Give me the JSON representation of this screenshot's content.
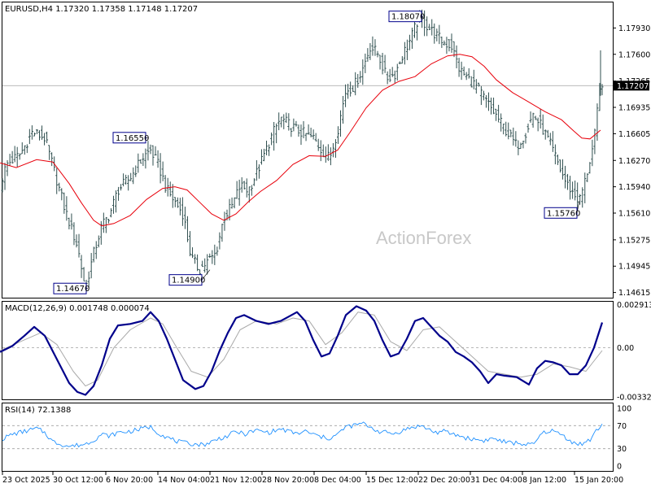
{
  "main_panel": {
    "header": "EURUSD,H4  1.17320 1.17358 1.17148 1.17207",
    "watermark": "ActionForex",
    "y_ticks": [
      "1.17930",
      "1.17600",
      "1.17265",
      "1.16935",
      "1.16605",
      "1.16270",
      "1.15940",
      "1.15610",
      "1.15275",
      "1.14945",
      "1.14615"
    ],
    "current_price": "1.17207",
    "annotations": [
      "1.18070",
      "1.16550",
      "1.14670",
      "1.14900",
      "1.15760"
    ]
  },
  "macd_panel": {
    "header": "MACD(12,26,9) 0.001748 0.000074",
    "y_ticks": [
      "0.002913",
      "0.00",
      "-0.003327"
    ]
  },
  "rsi_panel": {
    "header": "RSI(14) 72.1388",
    "y_ticks": [
      "100",
      "70",
      "30",
      "0"
    ]
  },
  "x_ticks": [
    "23 Oct 2025",
    "30 Oct 12:00",
    "6 Nov 20:00",
    "14 Nov 04:00",
    "21 Nov 12:00",
    "28 Nov 20:00",
    "8 Dec 04:00",
    "15 Dec 12:00",
    "22 Dec 20:00",
    "31 Dec 04:00",
    "8 Jan 12:00",
    "15 Jan 20:00"
  ],
  "colors": {
    "price_bars": "#2f4f4f",
    "moving_average": "#e8000b",
    "macd_line": "#00008b",
    "macd_signal": "#a9a9a9",
    "rsi_line": "#1e90ff",
    "annotation_box": "#00008b"
  },
  "chart_data": [
    {
      "type": "candlestick",
      "title": "EURUSD,H4",
      "symbol": "EURUSD",
      "timeframe": "H4",
      "last_bar": {
        "open": 1.1732,
        "high": 1.17358,
        "low": 1.17148,
        "close": 1.17207
      },
      "ylim": [
        1.1455,
        1.1825
      ],
      "x_tick_labels": [
        "23 Oct 2025",
        "30 Oct 12:00",
        "6 Nov 20:00",
        "14 Nov 04:00",
        "21 Nov 12:00",
        "28 Nov 20:00",
        "8 Dec 04:00",
        "15 Dec 12:00",
        "22 Dec 20:00",
        "31 Dec 04:00",
        "8 Jan 12:00",
        "15 Jan 20:00"
      ],
      "price_path": {
        "x": [
          0,
          8,
          25,
          40,
          55,
          65,
          80,
          95,
          105,
          115,
          125,
          135,
          145,
          160,
          175,
          185,
          195,
          205,
          215,
          225,
          235,
          245,
          255,
          265,
          275,
          285,
          295,
          305,
          315,
          325,
          335,
          345,
          355,
          365,
          375,
          385,
          395,
          405,
          415,
          425,
          435,
          445,
          455,
          465,
          475,
          485,
          495,
          505,
          515,
          525,
          535,
          545,
          555,
          565,
          575,
          585,
          595,
          605,
          615,
          625,
          635,
          645,
          655,
          665,
          675,
          685,
          695,
          705,
          712,
          720,
          730,
          738
        ],
        "y": [
          1.1596,
          1.1622,
          1.1635,
          1.1663,
          1.1655,
          1.162,
          1.1565,
          1.152,
          1.1467,
          1.151,
          1.1545,
          1.156,
          1.159,
          1.1605,
          1.163,
          1.164,
          1.162,
          1.159,
          1.1575,
          1.156,
          1.1505,
          1.149,
          1.15,
          1.151,
          1.1555,
          1.157,
          1.1595,
          1.159,
          1.161,
          1.1635,
          1.166,
          1.168,
          1.1672,
          1.1665,
          1.166,
          1.1655,
          1.164,
          1.163,
          1.1665,
          1.1715,
          1.172,
          1.174,
          1.177,
          1.176,
          1.173,
          1.1735,
          1.176,
          1.178,
          1.1807,
          1.1795,
          1.1785,
          1.1775,
          1.177,
          1.174,
          1.173,
          1.172,
          1.1705,
          1.169,
          1.1675,
          1.166,
          1.1645,
          1.166,
          1.1685,
          1.167,
          1.165,
          1.1625,
          1.16,
          1.1585,
          1.1576,
          1.1605,
          1.165,
          1.1725
        ]
      },
      "moving_average": {
        "x": [
          0,
          20,
          45,
          65,
          85,
          100,
          115,
          125,
          140,
          160,
          180,
          200,
          215,
          230,
          245,
          260,
          275,
          290,
          305,
          320,
          340,
          360,
          380,
          400,
          415,
          430,
          450,
          470,
          490,
          510,
          530,
          550,
          565,
          580,
          595,
          610,
          630,
          650,
          670,
          690,
          705,
          715,
          725,
          738
        ],
        "y": [
          1.1624,
          1.1618,
          1.1628,
          1.1625,
          1.1598,
          1.1574,
          1.1552,
          1.1545,
          1.1548,
          1.1558,
          1.1578,
          1.1592,
          1.1594,
          1.159,
          1.1575,
          1.156,
          1.1552,
          1.156,
          1.1575,
          1.1588,
          1.1602,
          1.1622,
          1.1633,
          1.1632,
          1.164,
          1.1662,
          1.1693,
          1.1715,
          1.1726,
          1.1732,
          1.1748,
          1.1758,
          1.176,
          1.1757,
          1.1745,
          1.1728,
          1.1712,
          1.17,
          1.1688,
          1.1678,
          1.1664,
          1.1655,
          1.1654,
          1.1665
        ]
      },
      "annotations": [
        {
          "label": "1.18070",
          "x": 520,
          "price": 1.1807
        },
        {
          "label": "1.16550",
          "x": 182,
          "price": 1.1655
        },
        {
          "label": "1.14670",
          "x": 108,
          "price": 1.1467
        },
        {
          "label": "1.14900",
          "x": 258,
          "price": 1.149
        },
        {
          "label": "1.15760",
          "x": 712,
          "price": 1.1576
        }
      ],
      "current_price": 1.17207
    },
    {
      "type": "line",
      "title": "MACD(12,26,9)",
      "series": [
        {
          "name": "MACD",
          "x": [
            0,
            15,
            30,
            42,
            55,
            70,
            85,
            95,
            105,
            115,
            125,
            135,
            145,
            160,
            175,
            185,
            195,
            205,
            215,
            225,
            240,
            250,
            260,
            270,
            280,
            290,
            300,
            315,
            330,
            345,
            355,
            365,
            375,
            385,
            395,
            405,
            415,
            425,
            438,
            450,
            460,
            470,
            480,
            490,
            500,
            510,
            520,
            530,
            540,
            550,
            560,
            570,
            580,
            590,
            600,
            610,
            620,
            635,
            650,
            660,
            670,
            680,
            690,
            700,
            710,
            720,
            730,
            740
          ],
          "y": [
            -0.0003,
            0.0001,
            0.0008,
            0.0014,
            0.0008,
            -0.0008,
            -0.0024,
            -0.003,
            -0.0032,
            -0.0026,
            -0.0012,
            0.0006,
            0.0015,
            0.0016,
            0.0018,
            0.0024,
            0.0018,
            0.0006,
            -0.0008,
            -0.0022,
            -0.0028,
            -0.0026,
            -0.0016,
            -0.0002,
            0.001,
            0.002,
            0.0022,
            0.0018,
            0.0016,
            0.0018,
            0.0021,
            0.0024,
            0.0018,
            0.0005,
            -0.0006,
            -0.0004,
            0.0008,
            0.0022,
            0.0028,
            0.0025,
            0.0018,
            0.0005,
            -0.0006,
            -0.0004,
            0.0006,
            0.0018,
            0.002,
            0.0014,
            0.0008,
            0.0004,
            -0.0003,
            -0.0006,
            -0.001,
            -0.0016,
            -0.0024,
            -0.0018,
            -0.0019,
            -0.002,
            -0.0025,
            -0.0014,
            -0.0009,
            -0.001,
            -0.0012,
            -0.0018,
            -0.0018,
            -0.0012,
            0.0,
            0.0017
          ]
        },
        {
          "name": "Signal",
          "x": [
            0,
            25,
            50,
            70,
            90,
            105,
            120,
            140,
            160,
            185,
            200,
            215,
            235,
            255,
            275,
            295,
            315,
            340,
            360,
            380,
            400,
            420,
            440,
            460,
            480,
            500,
            520,
            540,
            560,
            580,
            600,
            620,
            640,
            660,
            680,
            700,
            720,
            740
          ],
          "y": [
            -0.0002,
            0.0004,
            0.001,
            0.0002,
            -0.0016,
            -0.0026,
            -0.0022,
            0.0,
            0.0012,
            0.002,
            0.0016,
            0.0002,
            -0.0016,
            -0.002,
            -0.0008,
            0.0012,
            0.0018,
            0.0016,
            0.002,
            0.0018,
            0.0002,
            0.001,
            0.0024,
            0.0022,
            0.0004,
            -0.0002,
            0.0012,
            0.0014,
            0.0004,
            -0.0006,
            -0.0016,
            -0.0018,
            -0.002,
            -0.0018,
            -0.0011,
            -0.0013,
            -0.0016,
            -0.0002
          ]
        }
      ],
      "ylim": [
        -0.0035,
        0.0031
      ],
      "y_tick_labels": [
        "0.002913",
        "0.00",
        "-0.003327"
      ]
    },
    {
      "type": "line",
      "title": "RSI(14)",
      "series": [
        {
          "name": "RSI",
          "x": [
            0,
            15,
            30,
            45,
            55,
            65,
            75,
            85,
            95,
            105,
            115,
            125,
            135,
            145,
            160,
            175,
            185,
            195,
            205,
            215,
            225,
            240,
            250,
            260,
            270,
            280,
            290,
            300,
            315,
            330,
            345,
            355,
            365,
            375,
            385,
            395,
            405,
            415,
            425,
            435,
            445,
            455,
            465,
            475,
            485,
            495,
            505,
            515,
            525,
            535,
            545,
            555,
            565,
            575,
            585,
            595,
            605,
            615,
            625,
            635,
            645,
            655,
            665,
            675,
            685,
            695,
            705,
            715,
            725,
            735,
            740
          ],
          "y": [
            45,
            55,
            60,
            65,
            58,
            42,
            38,
            34,
            36,
            38,
            45,
            55,
            52,
            58,
            60,
            65,
            68,
            57,
            50,
            44,
            40,
            38,
            37,
            42,
            48,
            52,
            60,
            55,
            62,
            58,
            64,
            60,
            56,
            60,
            55,
            50,
            48,
            55,
            68,
            70,
            74,
            68,
            60,
            58,
            56,
            62,
            66,
            70,
            65,
            58,
            60,
            56,
            52,
            48,
            46,
            44,
            48,
            44,
            40,
            40,
            38,
            36,
            55,
            62,
            58,
            50,
            40,
            38,
            45,
            65,
            72
          ]
        }
      ],
      "ylim": [
        0,
        100
      ],
      "y_tick_labels": [
        "100",
        "70",
        "30",
        "0"
      ],
      "levels": [
        70,
        30
      ]
    }
  ]
}
